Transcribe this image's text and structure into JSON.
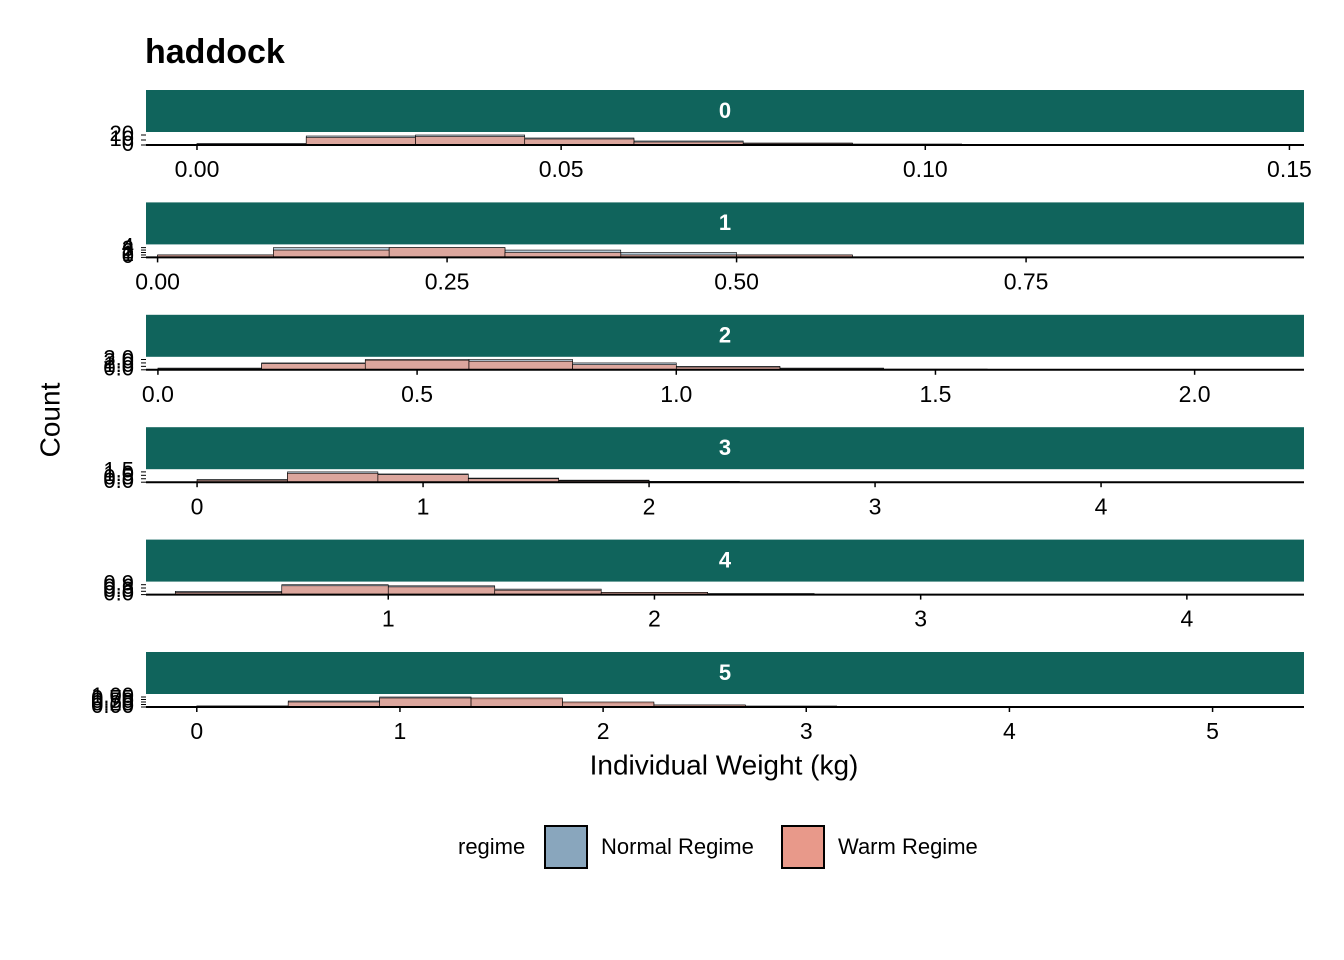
{
  "title": "haddock",
  "x_label": "Individual Weight (kg)",
  "y_label": "Count",
  "legend": {
    "title": "regime"
  },
  "chart_data": [
    {
      "type": "histogram",
      "strip": "0",
      "xlim": [
        -0.007,
        0.152
      ],
      "xticks": [
        {
          "value": 0,
          "label": "0.00"
        },
        0.05,
        {
          "value": 0.1,
          "label": "0.10"
        },
        0.15
      ],
      "ylim": [
        0,
        22
      ],
      "yticks": [
        0,
        10,
        20
      ],
      "bins": [
        0,
        0.015,
        0.03,
        0.045,
        0.06,
        0.075,
        0.09,
        0.105,
        0.12,
        0.135,
        0.15
      ],
      "series": [
        {
          "name": "Normal Regime",
          "color": "#89a6bd",
          "values": [
            3,
            18,
            20,
            14,
            8,
            4,
            2,
            1,
            0,
            0
          ]
        },
        {
          "name": "Warm Regime",
          "color": "#e8998a",
          "values": [
            2,
            15,
            17,
            12,
            6,
            3,
            1,
            0,
            0,
            0
          ]
        }
      ]
    },
    {
      "type": "histogram",
      "strip": "1",
      "xlim": [
        -0.01,
        0.99
      ],
      "xticks": [
        {
          "value": 0,
          "label": "0.00"
        },
        0.25,
        {
          "value": 0.5,
          "label": "0.50"
        },
        0.75
      ],
      "ylim": [
        0,
        4.5
      ],
      "yticks": [
        0,
        1,
        2,
        3,
        4
      ],
      "bins": [
        0,
        0.1,
        0.2,
        0.3,
        0.4,
        0.5,
        0.6,
        0.7,
        0.8,
        0.9,
        1.0
      ],
      "series": [
        {
          "name": "Normal Regime",
          "color": "#89a6bd",
          "values": [
            1,
            4,
            4,
            3,
            2,
            1,
            0,
            0,
            0,
            0
          ]
        },
        {
          "name": "Warm Regime",
          "color": "#e8998a",
          "values": [
            1,
            3,
            4,
            2,
            1,
            1,
            0,
            0,
            0,
            0
          ]
        }
      ]
    },
    {
      "type": "histogram",
      "strip": "2",
      "xlim": [
        -0.023,
        2.211
      ],
      "xticks": [
        {
          "value": 0,
          "label": "0.0"
        },
        0.5,
        {
          "value": 1,
          "label": "1.0"
        },
        1.5,
        {
          "value": 2,
          "label": "2.0"
        }
      ],
      "ylim": [
        0,
        3.2
      ],
      "yticks": [
        {
          "value": 0,
          "label": "0.0"
        },
        {
          "value": 1,
          "label": "1.0"
        },
        {
          "value": 2,
          "label": "2.0"
        },
        {
          "value": 3,
          "label": "3.0"
        }
      ],
      "bins": [
        0,
        0.2,
        0.4,
        0.6,
        0.8,
        1.0,
        1.2,
        1.4,
        1.6,
        1.8,
        2.0,
        2.2
      ],
      "series": [
        {
          "name": "Normal Regime",
          "color": "#89a6bd",
          "values": [
            0.5,
            2,
            3,
            3,
            2,
            1,
            0.5,
            0.2,
            0.1,
            0,
            0
          ]
        },
        {
          "name": "Warm Regime",
          "color": "#e8998a",
          "values": [
            0.3,
            1.8,
            2.8,
            2.5,
            1.5,
            0.8,
            0.3,
            0.1,
            0,
            0,
            0
          ]
        }
      ]
    },
    {
      "type": "histogram",
      "strip": "3",
      "xlim": [
        -0.226,
        4.898
      ],
      "xticks": [
        0,
        1,
        2,
        3,
        4
      ],
      "ylim": [
        0,
        1.6
      ],
      "yticks": [
        {
          "value": 0,
          "label": "0.0"
        },
        0.5,
        {
          "value": 1,
          "label": "1.0"
        },
        1.5
      ],
      "bins": [
        0,
        0.4,
        0.8,
        1.2,
        1.6,
        2.0,
        2.4,
        2.8,
        3.2,
        3.6,
        4.0,
        4.4,
        4.8
      ],
      "series": [
        {
          "name": "Normal Regime",
          "color": "#89a6bd",
          "values": [
            0.4,
            1.5,
            1.2,
            0.6,
            0.3,
            0.1,
            0.05,
            0,
            0,
            0,
            0,
            0
          ]
        },
        {
          "name": "Warm Regime",
          "color": "#e8998a",
          "values": [
            0.3,
            1.3,
            1.1,
            0.5,
            0.2,
            0.1,
            0,
            0,
            0,
            0,
            0,
            0
          ]
        }
      ]
    },
    {
      "type": "histogram",
      "strip": "4",
      "xlim": [
        0.09,
        4.44
      ],
      "xticks": [
        1,
        2,
        3,
        4
      ],
      "ylim": [
        0,
        1
      ],
      "yticks": [
        {
          "value": 0,
          "label": "0.0"
        },
        0.3,
        0.6,
        0.9
      ],
      "bins": [
        0.2,
        0.6,
        1.0,
        1.4,
        1.8,
        2.2,
        2.6,
        3.0,
        3.4,
        3.8,
        4.2
      ],
      "series": [
        {
          "name": "Normal Regime",
          "color": "#89a6bd",
          "values": [
            0.3,
            0.9,
            0.8,
            0.5,
            0.2,
            0.1,
            0,
            0,
            0,
            0
          ]
        },
        {
          "name": "Warm Regime",
          "color": "#e8998a",
          "values": [
            0.2,
            0.8,
            0.7,
            0.4,
            0.2,
            0.05,
            0,
            0,
            0,
            0
          ]
        }
      ]
    },
    {
      "type": "histogram",
      "strip": "5",
      "xlim": [
        -0.25,
        5.45
      ],
      "xticks": [
        0,
        1,
        2,
        3,
        4,
        5
      ],
      "ylim": [
        0,
        1.1
      ],
      "yticks": [
        {
          "value": 0,
          "label": "0.00"
        },
        0.25,
        {
          "value": 0.5,
          "label": "0.50"
        },
        0.75,
        {
          "value": 1,
          "label": "1.00"
        }
      ],
      "bins": [
        0,
        0.45,
        0.9,
        1.35,
        1.8,
        2.25,
        2.7,
        3.15,
        3.6,
        4.05,
        4.5,
        4.95,
        5.4
      ],
      "series": [
        {
          "name": "Normal Regime",
          "color": "#89a6bd",
          "values": [
            0.1,
            0.6,
            1.0,
            0.8,
            0.4,
            0.2,
            0.1,
            0,
            0,
            0,
            0,
            0
          ]
        },
        {
          "name": "Warm Regime",
          "color": "#e8998a",
          "values": [
            0.1,
            0.5,
            0.9,
            0.9,
            0.5,
            0.2,
            0.05,
            0,
            0,
            0,
            0,
            0
          ]
        }
      ]
    }
  ]
}
